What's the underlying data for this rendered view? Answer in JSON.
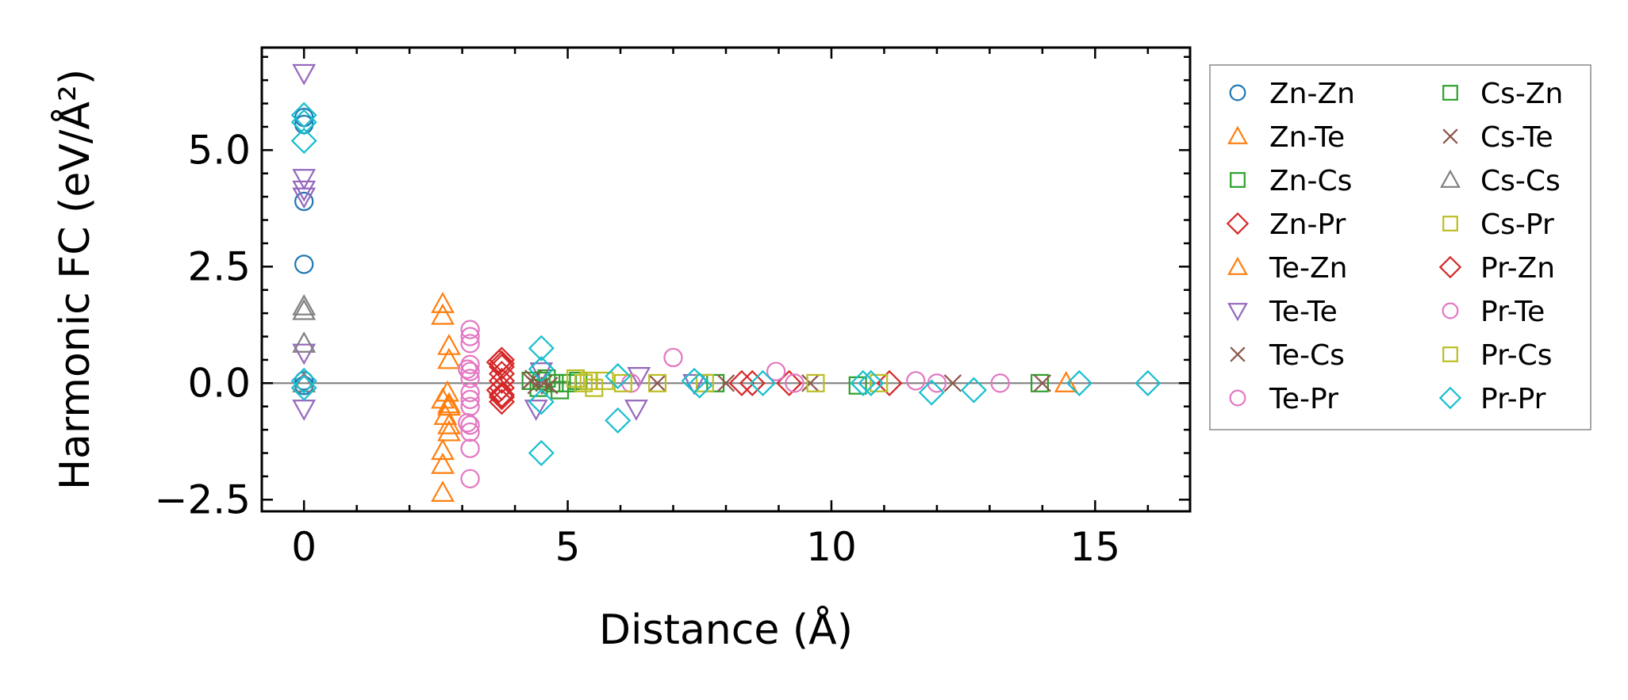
{
  "chart_data": {
    "type": "scatter",
    "title": "",
    "xlabel": "Distance (Å)",
    "ylabel": "Harmonic FC (eV/Å²)",
    "xlim": [
      -0.8,
      16.8
    ],
    "ylim": [
      -2.75,
      7.2
    ],
    "xticks": [
      0,
      5,
      10,
      15
    ],
    "xtick_labels": [
      "0",
      "5",
      "10",
      "15"
    ],
    "yticks": [
      -2.5,
      0.0,
      2.5,
      5.0
    ],
    "ytick_labels": [
      "−2.5",
      "0.0",
      "2.5",
      "5.0"
    ],
    "grid": false,
    "legend_position": "outside-right",
    "legend_columns": 2,
    "zero_line": 0,
    "series": [
      {
        "name": "Zn-Zn",
        "color": "#1f77b4",
        "marker": "circle",
        "points": [
          [
            0,
            3.9
          ],
          [
            0,
            2.55
          ],
          [
            0,
            5.7
          ],
          [
            0,
            5.55
          ],
          [
            0,
            -0.05
          ],
          [
            0,
            0.05
          ]
        ]
      },
      {
        "name": "Zn-Te",
        "color": "#ff7f0e",
        "marker": "triangle-up",
        "points": [
          [
            2.63,
            1.7
          ],
          [
            2.63,
            1.45
          ],
          [
            2.63,
            -0.35
          ],
          [
            2.63,
            -1.45
          ],
          [
            2.63,
            -1.75
          ],
          [
            2.63,
            -2.35
          ],
          [
            2.75,
            0.8
          ],
          [
            2.75,
            0.5
          ],
          [
            2.75,
            -0.5
          ],
          [
            2.75,
            -0.9
          ],
          [
            2.75,
            -1.05
          ],
          [
            2.75,
            -0.45
          ]
        ]
      },
      {
        "name": "Zn-Cs",
        "color": "#2ca02c",
        "marker": "square",
        "points": [
          [
            4.3,
            0.05
          ],
          [
            4.45,
            -0.1
          ],
          [
            4.6,
            0.1
          ],
          [
            4.75,
            0.0
          ],
          [
            4.85,
            -0.15
          ],
          [
            5.2,
            0.05
          ],
          [
            7.8,
            0.0
          ],
          [
            10.5,
            -0.05
          ],
          [
            13.95,
            0.0
          ]
        ]
      },
      {
        "name": "Zn-Pr",
        "color": "#d62728",
        "marker": "diamond",
        "points": [
          [
            3.75,
            0.5
          ],
          [
            3.75,
            0.35
          ],
          [
            3.75,
            0.2
          ],
          [
            3.75,
            0.05
          ],
          [
            3.75,
            -0.1
          ],
          [
            3.75,
            -0.25
          ],
          [
            3.75,
            -0.4
          ],
          [
            3.75,
            0.42
          ],
          [
            3.75,
            -0.3
          ],
          [
            8.3,
            0.0
          ],
          [
            9.2,
            0.0
          ],
          [
            11.1,
            0.0
          ]
        ]
      },
      {
        "name": "Te-Zn",
        "color": "#ff7f0e",
        "marker": "triangle-up",
        "points": [
          [
            2.68,
            -0.7
          ],
          [
            2.72,
            -0.2
          ],
          [
            14.45,
            0.0
          ]
        ]
      },
      {
        "name": "Te-Te",
        "color": "#9467bd",
        "marker": "triangle-down",
        "points": [
          [
            0,
            6.65
          ],
          [
            0,
            4.4
          ],
          [
            0,
            4.15
          ],
          [
            0,
            4.0
          ],
          [
            0,
            0.65
          ],
          [
            0,
            -0.55
          ],
          [
            4.4,
            -0.55
          ],
          [
            4.5,
            0.25
          ],
          [
            6.3,
            -0.55
          ],
          [
            6.35,
            0.15
          ],
          [
            7.4,
            0.0
          ]
        ]
      },
      {
        "name": "Te-Cs",
        "color": "#8c564b",
        "marker": "x",
        "points": [
          [
            4.35,
            0.1
          ],
          [
            4.4,
            -0.05
          ],
          [
            4.55,
            0.0
          ],
          [
            6.7,
            0.0
          ],
          [
            9.6,
            0.0
          ],
          [
            12.3,
            0.0
          ],
          [
            14.0,
            0.0
          ]
        ]
      },
      {
        "name": "Te-Pr",
        "color": "#e377c2",
        "marker": "circle",
        "points": [
          [
            3.15,
            1.15
          ],
          [
            3.15,
            1.0
          ],
          [
            3.15,
            0.85
          ],
          [
            3.15,
            0.4
          ],
          [
            3.15,
            0.25
          ],
          [
            3.15,
            0.1
          ],
          [
            3.15,
            -0.2
          ],
          [
            3.15,
            -0.35
          ],
          [
            3.15,
            -0.5
          ],
          [
            3.15,
            -0.9
          ],
          [
            3.15,
            -1.05
          ],
          [
            3.15,
            -1.4
          ],
          [
            3.15,
            -2.05
          ],
          [
            7.0,
            0.55
          ],
          [
            8.95,
            0.25
          ],
          [
            9.3,
            0.0
          ],
          [
            11.6,
            0.05
          ],
          [
            13.2,
            0.0
          ]
        ]
      },
      {
        "name": "Cs-Zn",
        "color": "#2ca02c",
        "marker": "square",
        "points": [
          [
            4.5,
            0.05
          ],
          [
            5.0,
            0.0
          ]
        ]
      },
      {
        "name": "Cs-Te",
        "color": "#8c564b",
        "marker": "x",
        "points": [
          [
            4.3,
            0.05
          ],
          [
            4.65,
            -0.05
          ],
          [
            8.0,
            0.0
          ]
        ]
      },
      {
        "name": "Cs-Cs",
        "color": "#7f7f7f",
        "marker": "triangle-up",
        "points": [
          [
            0,
            1.65
          ],
          [
            0,
            1.55
          ],
          [
            0,
            0.85
          ],
          [
            0,
            0.0
          ]
        ]
      },
      {
        "name": "Cs-Pr",
        "color": "#bcbd22",
        "marker": "square",
        "points": [
          [
            5.15,
            0.1
          ],
          [
            5.3,
            0.0
          ],
          [
            5.5,
            -0.1
          ],
          [
            5.7,
            0.05
          ],
          [
            6.7,
            0.0
          ],
          [
            7.6,
            0.0
          ],
          [
            9.7,
            0.0
          ],
          [
            10.9,
            0.0
          ]
        ]
      },
      {
        "name": "Pr-Zn",
        "color": "#d62728",
        "marker": "diamond",
        "points": [
          [
            3.7,
            0.45
          ],
          [
            3.7,
            -0.15
          ],
          [
            8.5,
            0.0
          ]
        ]
      },
      {
        "name": "Pr-Te",
        "color": "#e377c2",
        "marker": "circle",
        "points": [
          [
            3.1,
            0.3
          ],
          [
            3.1,
            -0.85
          ],
          [
            6.2,
            0.0
          ],
          [
            12.0,
            0.0
          ]
        ]
      },
      {
        "name": "Pr-Cs",
        "color": "#bcbd22",
        "marker": "square",
        "points": [
          [
            5.4,
            0.05
          ],
          [
            6.05,
            0.0
          ]
        ]
      },
      {
        "name": "Pr-Pr",
        "color": "#17becf",
        "marker": "diamond",
        "points": [
          [
            0,
            5.75
          ],
          [
            0,
            5.6
          ],
          [
            0,
            5.2
          ],
          [
            0,
            0.05
          ],
          [
            0,
            -0.1
          ],
          [
            4.5,
            0.75
          ],
          [
            4.5,
            0.3
          ],
          [
            4.5,
            -0.4
          ],
          [
            4.5,
            -1.5
          ],
          [
            5.95,
            -0.8
          ],
          [
            5.95,
            0.15
          ],
          [
            7.4,
            0.05
          ],
          [
            7.5,
            -0.05
          ],
          [
            8.7,
            0.0
          ],
          [
            10.6,
            0.0
          ],
          [
            10.75,
            0.0
          ],
          [
            11.9,
            -0.2
          ],
          [
            12.7,
            -0.15
          ],
          [
            14.7,
            0.0
          ],
          [
            16.0,
            0.0
          ]
        ]
      }
    ]
  }
}
